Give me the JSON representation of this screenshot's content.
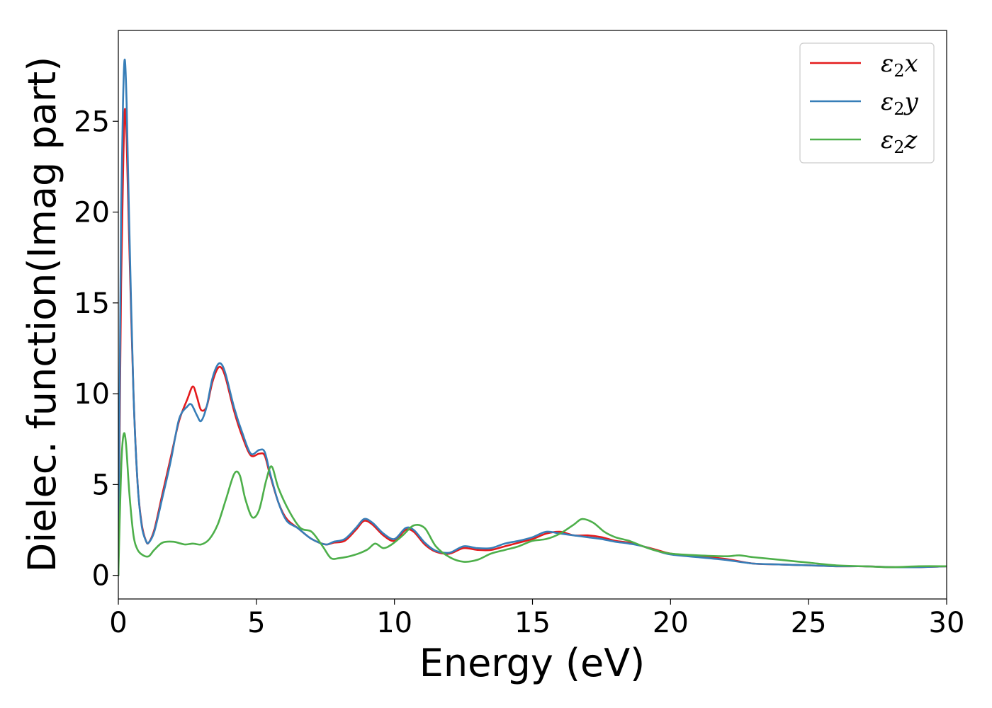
{
  "chart_data": {
    "type": "line",
    "title": "",
    "xlabel": "Energy (eV)",
    "ylabel": "Dielec. function(Imag part)",
    "xlim": [
      0,
      30
    ],
    "ylim": [
      -1.3,
      30
    ],
    "xticks": [
      0,
      5,
      10,
      15,
      20,
      25,
      30
    ],
    "yticks": [
      0,
      5,
      10,
      15,
      20,
      25
    ],
    "grid": false,
    "legend_position": "top-right",
    "series": [
      {
        "name": "ε2x",
        "legend": {
          "base": "ε",
          "sub": "2",
          "suffix": "x"
        },
        "color": "#e41a1c",
        "points": [
          [
            0,
            0
          ],
          [
            0.05,
            8
          ],
          [
            0.1,
            16
          ],
          [
            0.17,
            22
          ],
          [
            0.23,
            25.6
          ],
          [
            0.3,
            24
          ],
          [
            0.4,
            18
          ],
          [
            0.55,
            10
          ],
          [
            0.7,
            5
          ],
          [
            0.85,
            2.8
          ],
          [
            1.0,
            1.9
          ],
          [
            1.1,
            1.8
          ],
          [
            1.3,
            2.5
          ],
          [
            1.6,
            4.5
          ],
          [
            1.9,
            6.5
          ],
          [
            2.2,
            8.5
          ],
          [
            2.5,
            9.7
          ],
          [
            2.7,
            10.4
          ],
          [
            2.85,
            9.8
          ],
          [
            3.0,
            9.1
          ],
          [
            3.2,
            9.3
          ],
          [
            3.4,
            10.6
          ],
          [
            3.6,
            11.4
          ],
          [
            3.75,
            11.4
          ],
          [
            3.9,
            10.8
          ],
          [
            4.2,
            9.0
          ],
          [
            4.5,
            7.6
          ],
          [
            4.8,
            6.6
          ],
          [
            5.1,
            6.7
          ],
          [
            5.3,
            6.6
          ],
          [
            5.5,
            5.5
          ],
          [
            5.8,
            4.0
          ],
          [
            6.1,
            3.1
          ],
          [
            6.5,
            2.6
          ],
          [
            7.0,
            2.0
          ],
          [
            7.5,
            1.7
          ],
          [
            7.8,
            1.8
          ],
          [
            8.2,
            1.9
          ],
          [
            8.6,
            2.5
          ],
          [
            8.9,
            3.0
          ],
          [
            9.2,
            2.8
          ],
          [
            9.6,
            2.2
          ],
          [
            10.0,
            1.9
          ],
          [
            10.4,
            2.5
          ],
          [
            10.7,
            2.4
          ],
          [
            11.1,
            1.7
          ],
          [
            11.5,
            1.3
          ],
          [
            12.0,
            1.2
          ],
          [
            12.5,
            1.5
          ],
          [
            13.0,
            1.4
          ],
          [
            13.5,
            1.4
          ],
          [
            14.0,
            1.6
          ],
          [
            14.5,
            1.8
          ],
          [
            15.0,
            2.0
          ],
          [
            15.5,
            2.3
          ],
          [
            16.0,
            2.4
          ],
          [
            16.5,
            2.2
          ],
          [
            17.0,
            2.2
          ],
          [
            17.5,
            2.1
          ],
          [
            18.0,
            1.9
          ],
          [
            18.5,
            1.8
          ],
          [
            19.0,
            1.6
          ],
          [
            19.5,
            1.4
          ],
          [
            20.0,
            1.2
          ],
          [
            21.0,
            1.05
          ],
          [
            22.0,
            0.9
          ],
          [
            23.0,
            0.65
          ],
          [
            24.0,
            0.6
          ],
          [
            25.0,
            0.55
          ],
          [
            26.0,
            0.5
          ],
          [
            27.0,
            0.5
          ],
          [
            28.0,
            0.45
          ],
          [
            29.0,
            0.45
          ],
          [
            30.0,
            0.5
          ]
        ]
      },
      {
        "name": "ε2y",
        "legend": {
          "base": "ε",
          "sub": "2",
          "suffix": "y"
        },
        "color": "#377eb8",
        "points": [
          [
            0,
            0
          ],
          [
            0.05,
            10
          ],
          [
            0.1,
            20
          ],
          [
            0.17,
            26
          ],
          [
            0.23,
            28.4
          ],
          [
            0.3,
            26
          ],
          [
            0.4,
            19
          ],
          [
            0.55,
            10
          ],
          [
            0.7,
            5
          ],
          [
            0.85,
            2.7
          ],
          [
            1.0,
            1.9
          ],
          [
            1.1,
            1.8
          ],
          [
            1.3,
            2.4
          ],
          [
            1.6,
            4.3
          ],
          [
            1.9,
            6.3
          ],
          [
            2.2,
            8.6
          ],
          [
            2.5,
            9.3
          ],
          [
            2.65,
            9.4
          ],
          [
            2.85,
            8.8
          ],
          [
            3.0,
            8.5
          ],
          [
            3.2,
            9.3
          ],
          [
            3.4,
            10.8
          ],
          [
            3.6,
            11.6
          ],
          [
            3.75,
            11.6
          ],
          [
            3.9,
            11.0
          ],
          [
            4.2,
            9.2
          ],
          [
            4.5,
            7.8
          ],
          [
            4.8,
            6.7
          ],
          [
            5.1,
            6.9
          ],
          [
            5.3,
            6.8
          ],
          [
            5.5,
            5.6
          ],
          [
            5.8,
            4.0
          ],
          [
            6.1,
            3.0
          ],
          [
            6.5,
            2.6
          ],
          [
            7.0,
            2.0
          ],
          [
            7.5,
            1.7
          ],
          [
            7.8,
            1.85
          ],
          [
            8.2,
            2.0
          ],
          [
            8.6,
            2.6
          ],
          [
            8.9,
            3.1
          ],
          [
            9.2,
            2.9
          ],
          [
            9.6,
            2.3
          ],
          [
            10.0,
            2.0
          ],
          [
            10.4,
            2.6
          ],
          [
            10.7,
            2.5
          ],
          [
            11.1,
            1.8
          ],
          [
            11.5,
            1.35
          ],
          [
            12.0,
            1.25
          ],
          [
            12.5,
            1.6
          ],
          [
            13.0,
            1.5
          ],
          [
            13.5,
            1.5
          ],
          [
            14.0,
            1.75
          ],
          [
            14.5,
            1.9
          ],
          [
            15.0,
            2.1
          ],
          [
            15.5,
            2.4
          ],
          [
            16.0,
            2.3
          ],
          [
            16.5,
            2.2
          ],
          [
            17.0,
            2.1
          ],
          [
            17.5,
            2.0
          ],
          [
            18.0,
            1.85
          ],
          [
            18.5,
            1.75
          ],
          [
            19.0,
            1.6
          ],
          [
            19.5,
            1.35
          ],
          [
            20.0,
            1.15
          ],
          [
            21.0,
            1.0
          ],
          [
            22.0,
            0.85
          ],
          [
            23.0,
            0.65
          ],
          [
            24.0,
            0.6
          ],
          [
            25.0,
            0.55
          ],
          [
            26.0,
            0.5
          ],
          [
            27.0,
            0.5
          ],
          [
            28.0,
            0.45
          ],
          [
            29.0,
            0.45
          ],
          [
            30.0,
            0.5
          ]
        ]
      },
      {
        "name": "ε2z",
        "legend": {
          "base": "ε",
          "sub": "2",
          "suffix": "z"
        },
        "color": "#4daf4a",
        "points": [
          [
            0,
            0
          ],
          [
            0.05,
            3
          ],
          [
            0.12,
            6.5
          ],
          [
            0.2,
            7.8
          ],
          [
            0.28,
            7.2
          ],
          [
            0.4,
            4.5
          ],
          [
            0.55,
            2.2
          ],
          [
            0.7,
            1.4
          ],
          [
            0.9,
            1.1
          ],
          [
            1.1,
            1.05
          ],
          [
            1.3,
            1.4
          ],
          [
            1.6,
            1.8
          ],
          [
            2.0,
            1.85
          ],
          [
            2.4,
            1.7
          ],
          [
            2.7,
            1.75
          ],
          [
            3.0,
            1.7
          ],
          [
            3.3,
            2.0
          ],
          [
            3.6,
            2.8
          ],
          [
            3.9,
            4.2
          ],
          [
            4.2,
            5.6
          ],
          [
            4.4,
            5.5
          ],
          [
            4.6,
            4.2
          ],
          [
            4.85,
            3.2
          ],
          [
            5.1,
            3.6
          ],
          [
            5.35,
            5.2
          ],
          [
            5.55,
            6.0
          ],
          [
            5.8,
            4.8
          ],
          [
            6.2,
            3.5
          ],
          [
            6.6,
            2.6
          ],
          [
            7.0,
            2.4
          ],
          [
            7.4,
            1.6
          ],
          [
            7.7,
            0.95
          ],
          [
            8.0,
            0.95
          ],
          [
            8.5,
            1.1
          ],
          [
            9.0,
            1.4
          ],
          [
            9.3,
            1.75
          ],
          [
            9.6,
            1.5
          ],
          [
            9.9,
            1.7
          ],
          [
            10.3,
            2.2
          ],
          [
            10.7,
            2.75
          ],
          [
            11.1,
            2.6
          ],
          [
            11.5,
            1.6
          ],
          [
            12.0,
            1.0
          ],
          [
            12.5,
            0.75
          ],
          [
            13.0,
            0.85
          ],
          [
            13.5,
            1.2
          ],
          [
            14.0,
            1.4
          ],
          [
            14.5,
            1.6
          ],
          [
            15.0,
            1.9
          ],
          [
            15.5,
            2.0
          ],
          [
            16.0,
            2.3
          ],
          [
            16.5,
            2.8
          ],
          [
            16.8,
            3.1
          ],
          [
            17.2,
            2.9
          ],
          [
            17.6,
            2.4
          ],
          [
            18.0,
            2.1
          ],
          [
            18.5,
            1.9
          ],
          [
            19.0,
            1.6
          ],
          [
            19.5,
            1.35
          ],
          [
            20.0,
            1.2
          ],
          [
            21.0,
            1.1
          ],
          [
            22.0,
            1.05
          ],
          [
            22.5,
            1.1
          ],
          [
            23.0,
            1.0
          ],
          [
            24.0,
            0.85
          ],
          [
            25.0,
            0.7
          ],
          [
            26.0,
            0.55
          ],
          [
            27.0,
            0.5
          ],
          [
            28.0,
            0.45
          ],
          [
            29.0,
            0.5
          ],
          [
            30.0,
            0.5
          ]
        ]
      }
    ]
  }
}
